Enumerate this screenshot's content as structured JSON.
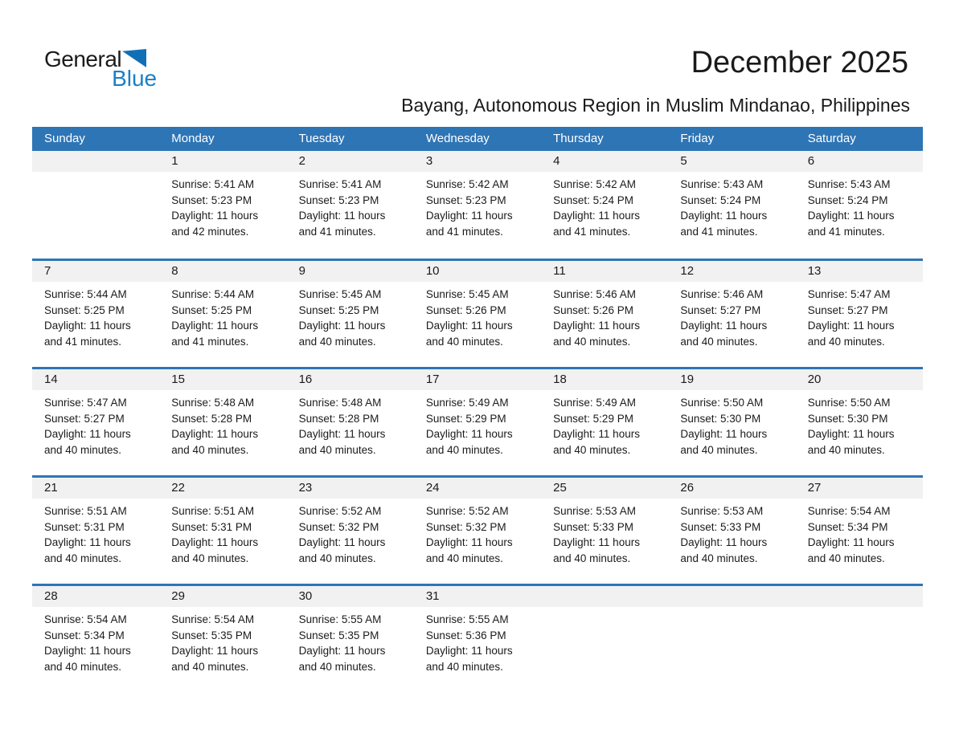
{
  "logo": {
    "general": "General",
    "blue": "Blue"
  },
  "header": {
    "title": "December 2025",
    "subtitle": "Bayang, Autonomous Region in Muslim Mindanao, Philippines"
  },
  "colors": {
    "header_blue": "#2E75B6",
    "week_divider_blue": "#2E75B6",
    "day_band_gray": "#F1F1F1",
    "logo_text_blue": "#1B7FC6",
    "logo_triangle_blue": "#1170B5",
    "text_black": "#1B1B1B"
  },
  "calendar": {
    "weekdays": [
      "Sunday",
      "Monday",
      "Tuesday",
      "Wednesday",
      "Thursday",
      "Friday",
      "Saturday"
    ],
    "weeks": [
      {
        "cells": [
          null,
          {
            "day": "1",
            "sunrise": "Sunrise: 5:41 AM",
            "sunset": "Sunset: 5:23 PM",
            "daylight1": "Daylight: 11 hours",
            "daylight2": "and 42 minutes."
          },
          {
            "day": "2",
            "sunrise": "Sunrise: 5:41 AM",
            "sunset": "Sunset: 5:23 PM",
            "daylight1": "Daylight: 11 hours",
            "daylight2": "and 41 minutes."
          },
          {
            "day": "3",
            "sunrise": "Sunrise: 5:42 AM",
            "sunset": "Sunset: 5:23 PM",
            "daylight1": "Daylight: 11 hours",
            "daylight2": "and 41 minutes."
          },
          {
            "day": "4",
            "sunrise": "Sunrise: 5:42 AM",
            "sunset": "Sunset: 5:24 PM",
            "daylight1": "Daylight: 11 hours",
            "daylight2": "and 41 minutes."
          },
          {
            "day": "5",
            "sunrise": "Sunrise: 5:43 AM",
            "sunset": "Sunset: 5:24 PM",
            "daylight1": "Daylight: 11 hours",
            "daylight2": "and 41 minutes."
          },
          {
            "day": "6",
            "sunrise": "Sunrise: 5:43 AM",
            "sunset": "Sunset: 5:24 PM",
            "daylight1": "Daylight: 11 hours",
            "daylight2": "and 41 minutes."
          }
        ]
      },
      {
        "cells": [
          {
            "day": "7",
            "sunrise": "Sunrise: 5:44 AM",
            "sunset": "Sunset: 5:25 PM",
            "daylight1": "Daylight: 11 hours",
            "daylight2": "and 41 minutes."
          },
          {
            "day": "8",
            "sunrise": "Sunrise: 5:44 AM",
            "sunset": "Sunset: 5:25 PM",
            "daylight1": "Daylight: 11 hours",
            "daylight2": "and 41 minutes."
          },
          {
            "day": "9",
            "sunrise": "Sunrise: 5:45 AM",
            "sunset": "Sunset: 5:25 PM",
            "daylight1": "Daylight: 11 hours",
            "daylight2": "and 40 minutes."
          },
          {
            "day": "10",
            "sunrise": "Sunrise: 5:45 AM",
            "sunset": "Sunset: 5:26 PM",
            "daylight1": "Daylight: 11 hours",
            "daylight2": "and 40 minutes."
          },
          {
            "day": "11",
            "sunrise": "Sunrise: 5:46 AM",
            "sunset": "Sunset: 5:26 PM",
            "daylight1": "Daylight: 11 hours",
            "daylight2": "and 40 minutes."
          },
          {
            "day": "12",
            "sunrise": "Sunrise: 5:46 AM",
            "sunset": "Sunset: 5:27 PM",
            "daylight1": "Daylight: 11 hours",
            "daylight2": "and 40 minutes."
          },
          {
            "day": "13",
            "sunrise": "Sunrise: 5:47 AM",
            "sunset": "Sunset: 5:27 PM",
            "daylight1": "Daylight: 11 hours",
            "daylight2": "and 40 minutes."
          }
        ]
      },
      {
        "cells": [
          {
            "day": "14",
            "sunrise": "Sunrise: 5:47 AM",
            "sunset": "Sunset: 5:27 PM",
            "daylight1": "Daylight: 11 hours",
            "daylight2": "and 40 minutes."
          },
          {
            "day": "15",
            "sunrise": "Sunrise: 5:48 AM",
            "sunset": "Sunset: 5:28 PM",
            "daylight1": "Daylight: 11 hours",
            "daylight2": "and 40 minutes."
          },
          {
            "day": "16",
            "sunrise": "Sunrise: 5:48 AM",
            "sunset": "Sunset: 5:28 PM",
            "daylight1": "Daylight: 11 hours",
            "daylight2": "and 40 minutes."
          },
          {
            "day": "17",
            "sunrise": "Sunrise: 5:49 AM",
            "sunset": "Sunset: 5:29 PM",
            "daylight1": "Daylight: 11 hours",
            "daylight2": "and 40 minutes."
          },
          {
            "day": "18",
            "sunrise": "Sunrise: 5:49 AM",
            "sunset": "Sunset: 5:29 PM",
            "daylight1": "Daylight: 11 hours",
            "daylight2": "and 40 minutes."
          },
          {
            "day": "19",
            "sunrise": "Sunrise: 5:50 AM",
            "sunset": "Sunset: 5:30 PM",
            "daylight1": "Daylight: 11 hours",
            "daylight2": "and 40 minutes."
          },
          {
            "day": "20",
            "sunrise": "Sunrise: 5:50 AM",
            "sunset": "Sunset: 5:30 PM",
            "daylight1": "Daylight: 11 hours",
            "daylight2": "and 40 minutes."
          }
        ]
      },
      {
        "cells": [
          {
            "day": "21",
            "sunrise": "Sunrise: 5:51 AM",
            "sunset": "Sunset: 5:31 PM",
            "daylight1": "Daylight: 11 hours",
            "daylight2": "and 40 minutes."
          },
          {
            "day": "22",
            "sunrise": "Sunrise: 5:51 AM",
            "sunset": "Sunset: 5:31 PM",
            "daylight1": "Daylight: 11 hours",
            "daylight2": "and 40 minutes."
          },
          {
            "day": "23",
            "sunrise": "Sunrise: 5:52 AM",
            "sunset": "Sunset: 5:32 PM",
            "daylight1": "Daylight: 11 hours",
            "daylight2": "and 40 minutes."
          },
          {
            "day": "24",
            "sunrise": "Sunrise: 5:52 AM",
            "sunset": "Sunset: 5:32 PM",
            "daylight1": "Daylight: 11 hours",
            "daylight2": "and 40 minutes."
          },
          {
            "day": "25",
            "sunrise": "Sunrise: 5:53 AM",
            "sunset": "Sunset: 5:33 PM",
            "daylight1": "Daylight: 11 hours",
            "daylight2": "and 40 minutes."
          },
          {
            "day": "26",
            "sunrise": "Sunrise: 5:53 AM",
            "sunset": "Sunset: 5:33 PM",
            "daylight1": "Daylight: 11 hours",
            "daylight2": "and 40 minutes."
          },
          {
            "day": "27",
            "sunrise": "Sunrise: 5:54 AM",
            "sunset": "Sunset: 5:34 PM",
            "daylight1": "Daylight: 11 hours",
            "daylight2": "and 40 minutes."
          }
        ]
      },
      {
        "cells": [
          {
            "day": "28",
            "sunrise": "Sunrise: 5:54 AM",
            "sunset": "Sunset: 5:34 PM",
            "daylight1": "Daylight: 11 hours",
            "daylight2": "and 40 minutes."
          },
          {
            "day": "29",
            "sunrise": "Sunrise: 5:54 AM",
            "sunset": "Sunset: 5:35 PM",
            "daylight1": "Daylight: 11 hours",
            "daylight2": "and 40 minutes."
          },
          {
            "day": "30",
            "sunrise": "Sunrise: 5:55 AM",
            "sunset": "Sunset: 5:35 PM",
            "daylight1": "Daylight: 11 hours",
            "daylight2": "and 40 minutes."
          },
          {
            "day": "31",
            "sunrise": "Sunrise: 5:55 AM",
            "sunset": "Sunset: 5:36 PM",
            "daylight1": "Daylight: 11 hours",
            "daylight2": "and 40 minutes."
          },
          null,
          null,
          null
        ]
      }
    ]
  }
}
